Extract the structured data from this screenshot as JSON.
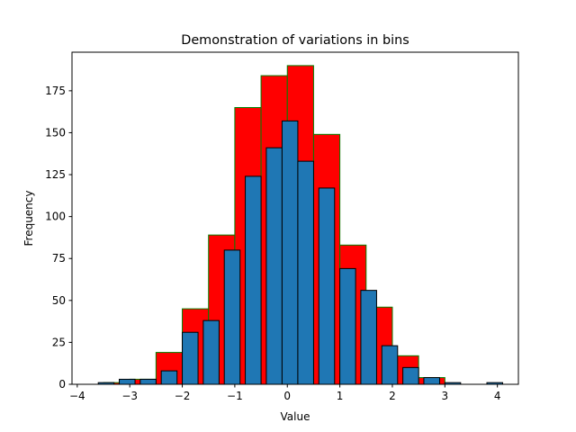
{
  "chart_data": {
    "type": "bar",
    "title": "Demonstration of variations in bins",
    "xlabel": "Value",
    "ylabel": "Frequency",
    "xlim": [
      -4.1,
      4.4
    ],
    "ylim": [
      0,
      198
    ],
    "xticks": [
      -4,
      -3,
      -2,
      -1,
      0,
      1,
      2,
      3,
      4
    ],
    "yticks": [
      0,
      25,
      50,
      75,
      100,
      125,
      150,
      175
    ],
    "grid": false,
    "legend": "none",
    "series": [
      {
        "role": "wide-bins",
        "color": "#ff0000",
        "edge_color": "#008000",
        "bins": [
          {
            "x0": -3.5,
            "x1": -3.0,
            "value": 1
          },
          {
            "x0": -3.0,
            "x1": -2.5,
            "value": 3
          },
          {
            "x0": -2.5,
            "x1": -2.0,
            "value": 19
          },
          {
            "x0": -2.0,
            "x1": -1.5,
            "value": 45
          },
          {
            "x0": -1.5,
            "x1": -1.0,
            "value": 89
          },
          {
            "x0": -1.0,
            "x1": -0.5,
            "value": 165
          },
          {
            "x0": -0.5,
            "x1": 0.0,
            "value": 184
          },
          {
            "x0": 0.0,
            "x1": 0.5,
            "value": 190
          },
          {
            "x0": 0.5,
            "x1": 1.0,
            "value": 149
          },
          {
            "x0": 1.0,
            "x1": 1.5,
            "value": 83
          },
          {
            "x0": 1.5,
            "x1": 2.0,
            "value": 46
          },
          {
            "x0": 2.0,
            "x1": 2.5,
            "value": 17
          },
          {
            "x0": 2.5,
            "x1": 3.0,
            "value": 4
          }
        ]
      },
      {
        "role": "narrow-bins",
        "color": "#1f77b4",
        "edge_color": "#000000",
        "bins": [
          {
            "x0": -3.6,
            "x1": -3.3,
            "value": 1
          },
          {
            "x0": -3.2,
            "x1": -2.9,
            "value": 3
          },
          {
            "x0": -2.8,
            "x1": -2.5,
            "value": 3
          },
          {
            "x0": -2.4,
            "x1": -2.1,
            "value": 8
          },
          {
            "x0": -2.0,
            "x1": -1.7,
            "value": 31
          },
          {
            "x0": -1.6,
            "x1": -1.3,
            "value": 38
          },
          {
            "x0": -1.2,
            "x1": -0.9,
            "value": 80
          },
          {
            "x0": -0.8,
            "x1": -0.5,
            "value": 124
          },
          {
            "x0": -0.4,
            "x1": -0.1,
            "value": 141
          },
          {
            "x0": -0.1,
            "x1": 0.2,
            "value": 157
          },
          {
            "x0": 0.2,
            "x1": 0.5,
            "value": 133
          },
          {
            "x0": 0.6,
            "x1": 0.9,
            "value": 117
          },
          {
            "x0": 1.0,
            "x1": 1.3,
            "value": 69
          },
          {
            "x0": 1.4,
            "x1": 1.7,
            "value": 56
          },
          {
            "x0": 1.8,
            "x1": 2.1,
            "value": 23
          },
          {
            "x0": 2.2,
            "x1": 2.5,
            "value": 10
          },
          {
            "x0": 2.6,
            "x1": 2.9,
            "value": 4
          },
          {
            "x0": 3.0,
            "x1": 3.3,
            "value": 1
          },
          {
            "x0": 3.4,
            "x1": 3.7,
            "value": 0
          },
          {
            "x0": 3.8,
            "x1": 4.1,
            "value": 1
          }
        ]
      }
    ]
  }
}
